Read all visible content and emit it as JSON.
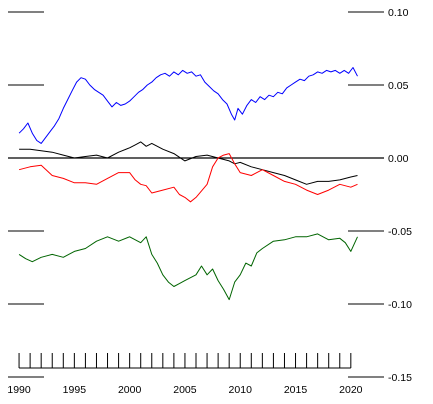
{
  "chart_data": {
    "type": "line",
    "title": "",
    "xlabel": "",
    "ylabel": "",
    "xlim": [
      1989.0,
      2023.0
    ],
    "ylim": [
      -0.15,
      0.1
    ],
    "x_ticks": [
      1990,
      1995,
      2000,
      2005,
      2010,
      2015,
      2020
    ],
    "x_tick_labels": [
      "1990",
      "1995",
      "2000",
      "2005",
      "2010",
      "2015",
      "2020"
    ],
    "x_minor_tick_step": 1,
    "y_ticks": [
      0.1,
      0.05,
      0.0,
      -0.05,
      -0.1,
      -0.15
    ],
    "y_tick_labels": [
      "0.10",
      "0.05",
      "0.00",
      "-0.05",
      "-0.10",
      "-0.15"
    ],
    "y_axis_side": "right",
    "grid": false,
    "reference_line": 0.0,
    "series": [
      {
        "color": "#0000ff",
        "points": [
          [
            1990.0,
            0.017
          ],
          [
            1990.4,
            0.02
          ],
          [
            1990.8,
            0.024
          ],
          [
            1991.2,
            0.017
          ],
          [
            1991.6,
            0.012
          ],
          [
            1992.0,
            0.01
          ],
          [
            1992.4,
            0.014
          ],
          [
            1992.8,
            0.018
          ],
          [
            1993.2,
            0.022
          ],
          [
            1993.6,
            0.027
          ],
          [
            1994.0,
            0.034
          ],
          [
            1994.4,
            0.04
          ],
          [
            1994.8,
            0.046
          ],
          [
            1995.2,
            0.052
          ],
          [
            1995.6,
            0.055
          ],
          [
            1996.0,
            0.054
          ],
          [
            1996.4,
            0.05
          ],
          [
            1996.8,
            0.047
          ],
          [
            1997.2,
            0.045
          ],
          [
            1997.6,
            0.043
          ],
          [
            1998.0,
            0.039
          ],
          [
            1998.4,
            0.035
          ],
          [
            1998.8,
            0.038
          ],
          [
            1999.2,
            0.036
          ],
          [
            1999.6,
            0.037
          ],
          [
            2000.0,
            0.039
          ],
          [
            2000.4,
            0.042
          ],
          [
            2000.8,
            0.045
          ],
          [
            2001.2,
            0.047
          ],
          [
            2001.6,
            0.05
          ],
          [
            2002.0,
            0.052
          ],
          [
            2002.4,
            0.055
          ],
          [
            2002.8,
            0.057
          ],
          [
            2003.2,
            0.058
          ],
          [
            2003.6,
            0.056
          ],
          [
            2004.0,
            0.059
          ],
          [
            2004.4,
            0.057
          ],
          [
            2004.8,
            0.06
          ],
          [
            2005.2,
            0.058
          ],
          [
            2005.6,
            0.059
          ],
          [
            2006.0,
            0.056
          ],
          [
            2006.4,
            0.057
          ],
          [
            2006.8,
            0.052
          ],
          [
            2007.2,
            0.049
          ],
          [
            2007.6,
            0.046
          ],
          [
            2008.0,
            0.044
          ],
          [
            2008.4,
            0.04
          ],
          [
            2008.8,
            0.037
          ],
          [
            2009.2,
            0.03
          ],
          [
            2009.5,
            0.026
          ],
          [
            2009.8,
            0.034
          ],
          [
            2010.2,
            0.03
          ],
          [
            2010.6,
            0.036
          ],
          [
            2011.0,
            0.04
          ],
          [
            2011.4,
            0.038
          ],
          [
            2011.8,
            0.042
          ],
          [
            2012.2,
            0.04
          ],
          [
            2012.6,
            0.043
          ],
          [
            2013.0,
            0.042
          ],
          [
            2013.4,
            0.045
          ],
          [
            2013.8,
            0.044
          ],
          [
            2014.2,
            0.048
          ],
          [
            2014.6,
            0.05
          ],
          [
            2015.0,
            0.052
          ],
          [
            2015.4,
            0.054
          ],
          [
            2015.8,
            0.053
          ],
          [
            2016.2,
            0.056
          ],
          [
            2016.6,
            0.057
          ],
          [
            2017.0,
            0.059
          ],
          [
            2017.4,
            0.058
          ],
          [
            2017.8,
            0.06
          ],
          [
            2018.2,
            0.059
          ],
          [
            2018.6,
            0.06
          ],
          [
            2019.0,
            0.058
          ],
          [
            2019.4,
            0.06
          ],
          [
            2019.8,
            0.058
          ],
          [
            2020.2,
            0.062
          ],
          [
            2020.6,
            0.056
          ]
        ]
      },
      {
        "color": "#000000",
        "points": [
          [
            1990.0,
            0.006
          ],
          [
            1991.0,
            0.006
          ],
          [
            1992.0,
            0.005
          ],
          [
            1993.0,
            0.004
          ],
          [
            1994.0,
            0.002
          ],
          [
            1995.0,
            0.0
          ],
          [
            1996.0,
            0.001
          ],
          [
            1997.0,
            0.002
          ],
          [
            1998.0,
            0.0
          ],
          [
            1999.0,
            0.004
          ],
          [
            2000.0,
            0.007
          ],
          [
            2000.5,
            0.009
          ],
          [
            2001.0,
            0.011
          ],
          [
            2001.5,
            0.008
          ],
          [
            2002.0,
            0.01
          ],
          [
            2003.0,
            0.006
          ],
          [
            2004.0,
            0.003
          ],
          [
            2005.0,
            -0.002
          ],
          [
            2006.0,
            0.001
          ],
          [
            2007.0,
            0.002
          ],
          [
            2008.0,
            0.0
          ],
          [
            2009.0,
            -0.002
          ],
          [
            2009.5,
            -0.004
          ],
          [
            2010.0,
            -0.003
          ],
          [
            2011.0,
            -0.006
          ],
          [
            2012.0,
            -0.008
          ],
          [
            2013.0,
            -0.01
          ],
          [
            2014.0,
            -0.012
          ],
          [
            2015.0,
            -0.015
          ],
          [
            2016.0,
            -0.018
          ],
          [
            2017.0,
            -0.016
          ],
          [
            2018.0,
            -0.016
          ],
          [
            2019.0,
            -0.015
          ],
          [
            2020.0,
            -0.013
          ],
          [
            2020.6,
            -0.012
          ]
        ]
      },
      {
        "color": "#ff0000",
        "points": [
          [
            1990.0,
            -0.008
          ],
          [
            1991.0,
            -0.006
          ],
          [
            1992.0,
            -0.005
          ],
          [
            1993.0,
            -0.012
          ],
          [
            1994.0,
            -0.014
          ],
          [
            1995.0,
            -0.017
          ],
          [
            1996.0,
            -0.017
          ],
          [
            1997.0,
            -0.018
          ],
          [
            1998.0,
            -0.014
          ],
          [
            1999.0,
            -0.01
          ],
          [
            2000.0,
            -0.01
          ],
          [
            2000.5,
            -0.015
          ],
          [
            2001.0,
            -0.018
          ],
          [
            2001.5,
            -0.019
          ],
          [
            2002.0,
            -0.024
          ],
          [
            2003.0,
            -0.022
          ],
          [
            2004.0,
            -0.02
          ],
          [
            2004.5,
            -0.025
          ],
          [
            2005.0,
            -0.027
          ],
          [
            2005.5,
            -0.03
          ],
          [
            2006.0,
            -0.027
          ],
          [
            2007.0,
            -0.018
          ],
          [
            2007.5,
            -0.006
          ],
          [
            2008.0,
            0.0
          ],
          [
            2008.5,
            0.002
          ],
          [
            2009.0,
            0.003
          ],
          [
            2009.5,
            -0.004
          ],
          [
            2010.0,
            -0.01
          ],
          [
            2011.0,
            -0.012
          ],
          [
            2012.0,
            -0.008
          ],
          [
            2013.0,
            -0.012
          ],
          [
            2014.0,
            -0.016
          ],
          [
            2015.0,
            -0.018
          ],
          [
            2016.0,
            -0.022
          ],
          [
            2017.0,
            -0.025
          ],
          [
            2018.0,
            -0.022
          ],
          [
            2019.0,
            -0.018
          ],
          [
            2020.0,
            -0.02
          ],
          [
            2020.6,
            -0.018
          ]
        ]
      },
      {
        "color": "#006400",
        "points": [
          [
            1990.0,
            -0.066
          ],
          [
            1990.6,
            -0.069
          ],
          [
            1991.2,
            -0.071
          ],
          [
            1992.0,
            -0.068
          ],
          [
            1993.0,
            -0.066
          ],
          [
            1994.0,
            -0.068
          ],
          [
            1995.0,
            -0.064
          ],
          [
            1996.0,
            -0.062
          ],
          [
            1997.0,
            -0.057
          ],
          [
            1998.0,
            -0.054
          ],
          [
            1999.0,
            -0.057
          ],
          [
            2000.0,
            -0.054
          ],
          [
            2001.0,
            -0.058
          ],
          [
            2001.5,
            -0.054
          ],
          [
            2002.0,
            -0.066
          ],
          [
            2002.5,
            -0.072
          ],
          [
            2003.0,
            -0.08
          ],
          [
            2003.5,
            -0.085
          ],
          [
            2004.0,
            -0.088
          ],
          [
            2004.5,
            -0.086
          ],
          [
            2005.0,
            -0.084
          ],
          [
            2006.0,
            -0.08
          ],
          [
            2006.5,
            -0.074
          ],
          [
            2007.0,
            -0.08
          ],
          [
            2007.5,
            -0.076
          ],
          [
            2008.0,
            -0.084
          ],
          [
            2008.5,
            -0.09
          ],
          [
            2009.0,
            -0.097
          ],
          [
            2009.5,
            -0.085
          ],
          [
            2010.0,
            -0.08
          ],
          [
            2010.5,
            -0.072
          ],
          [
            2011.0,
            -0.074
          ],
          [
            2011.5,
            -0.065
          ],
          [
            2012.0,
            -0.062
          ],
          [
            2013.0,
            -0.057
          ],
          [
            2014.0,
            -0.056
          ],
          [
            2015.0,
            -0.054
          ],
          [
            2016.0,
            -0.054
          ],
          [
            2017.0,
            -0.052
          ],
          [
            2018.0,
            -0.056
          ],
          [
            2019.0,
            -0.055
          ],
          [
            2019.5,
            -0.058
          ],
          [
            2020.0,
            -0.064
          ],
          [
            2020.6,
            -0.054
          ]
        ]
      }
    ]
  }
}
